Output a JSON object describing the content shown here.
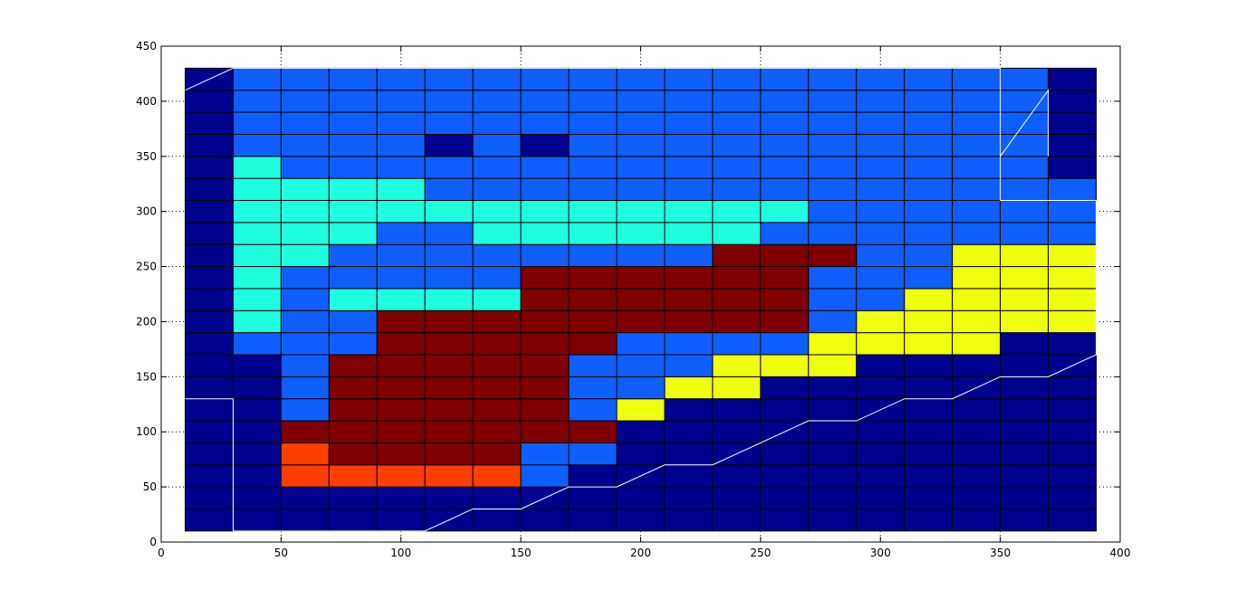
{
  "chart_data": {
    "type": "heatmap",
    "title": "",
    "xlabel": "",
    "ylabel": "",
    "xlim": [
      0,
      400
    ],
    "ylim": [
      0,
      450
    ],
    "grid": true,
    "x_ticks": [
      "0",
      "50",
      "100",
      "150",
      "200",
      "250",
      "300",
      "350",
      "400"
    ],
    "y_ticks": [
      "0",
      "50",
      "100",
      "150",
      "200",
      "250",
      "300",
      "350",
      "400",
      "450"
    ],
    "cell_grid": {
      "x0": 10,
      "dx": 20,
      "columns": 19,
      "y0": 10,
      "dy": 20,
      "rows": 21
    },
    "colormap": {
      "0": "#00008f",
      "1": "#0f5fff",
      "2": "#1fffdf",
      "3": "#efff0f",
      "4": "#ff3f00",
      "5": "#800000"
    },
    "levels_rows_bottom_to_top": [
      "0000000000000000000",
      "0000000000000000000",
      "0044444100000000000",
      "0045555110000000000",
      "0055555550000000000",
      "0015555513000000000",
      "0015555511330000000",
      "0015555511133300000",
      "0111555551111333300",
      "0211555555555133333",
      "0212222555555113333",
      "0211111555555111333",
      "0221111111155511333",
      "0222112222221111111",
      "0222222222222111111",
      "0222211111111111111",
      "0211111111111111110",
      "0111101011111111110",
      "0111111111111111110",
      "0111111111111111110",
      "0111111111111111110"
    ],
    "contours": [
      [
        [
          10,
          410
        ],
        [
          30,
          430
        ],
        [
          350,
          430
        ],
        [
          350,
          310
        ],
        [
          370,
          310
        ],
        [
          390,
          310
        ]
      ],
      [
        [
          350,
          350
        ],
        [
          370,
          410
        ],
        [
          370,
          350
        ]
      ],
      [
        [
          10,
          130
        ],
        [
          30,
          130
        ],
        [
          30,
          90
        ],
        [
          30,
          10
        ],
        [
          110,
          10
        ],
        [
          130,
          30
        ],
        [
          150,
          30
        ],
        [
          170,
          50
        ],
        [
          190,
          50
        ],
        [
          210,
          70
        ],
        [
          230,
          70
        ],
        [
          270,
          110
        ],
        [
          290,
          110
        ],
        [
          310,
          130
        ],
        [
          330,
          130
        ],
        [
          350,
          150
        ],
        [
          370,
          150
        ],
        [
          390,
          170
        ],
        [
          390,
          310
        ]
      ]
    ]
  }
}
